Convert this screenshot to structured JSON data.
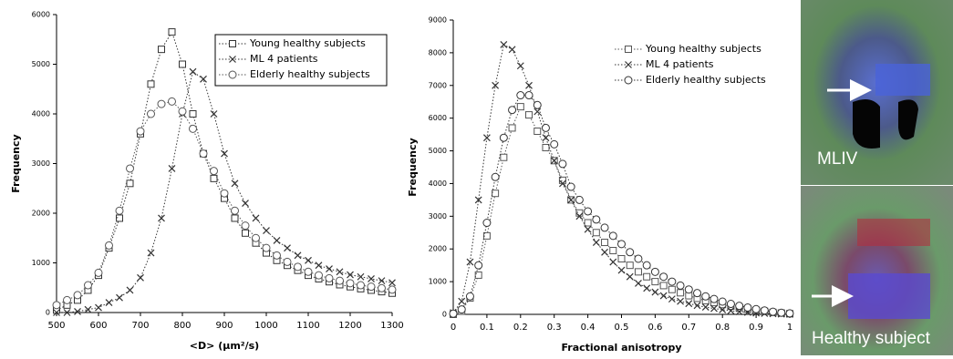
{
  "chart_data": [
    {
      "type": "scatter",
      "x_label": "<D> (μm²/s)",
      "y_label": "Frequency",
      "x": [
        500,
        525,
        550,
        575,
        600,
        625,
        650,
        675,
        700,
        725,
        750,
        775,
        800,
        825,
        850,
        875,
        900,
        925,
        950,
        975,
        1000,
        1025,
        1050,
        1075,
        1100,
        1125,
        1150,
        1175,
        1200,
        1225,
        1250,
        1275,
        1300
      ],
      "series": [
        {
          "name": "Young healthy subjects",
          "color": "#333333",
          "marker": "square",
          "values": [
            50,
            150,
            250,
            450,
            750,
            1300,
            1900,
            2600,
            3600,
            4600,
            5300,
            5650,
            5000,
            4000,
            3200,
            2700,
            2300,
            1900,
            1600,
            1400,
            1200,
            1050,
            950,
            850,
            750,
            680,
            620,
            560,
            520,
            480,
            450,
            420,
            390
          ]
        },
        {
          "name": "ML 4 patients",
          "color": "#333333",
          "marker": "x",
          "values": [
            0,
            0,
            20,
            60,
            100,
            200,
            300,
            450,
            700,
            1200,
            1900,
            2900,
            4000,
            4850,
            4700,
            4000,
            3200,
            2600,
            2200,
            1900,
            1650,
            1450,
            1300,
            1150,
            1050,
            950,
            880,
            820,
            760,
            720,
            680,
            640,
            600
          ]
        },
        {
          "name": "Elderly healthy subjects",
          "color": "#555555",
          "marker": "circle",
          "values": [
            150,
            250,
            350,
            550,
            800,
            1350,
            2050,
            2900,
            3650,
            4000,
            4200,
            4250,
            4050,
            3700,
            3200,
            2850,
            2400,
            2050,
            1750,
            1500,
            1300,
            1150,
            1020,
            920,
            820,
            750,
            690,
            640,
            590,
            550,
            520,
            490,
            460
          ]
        }
      ],
      "line_style": "dotted",
      "xlim": [
        500,
        1300
      ],
      "xticks": [
        500,
        600,
        700,
        800,
        900,
        1000,
        1100,
        1200,
        1300
      ],
      "ylim": [
        0,
        6000
      ],
      "yticks": [
        0,
        1000,
        2000,
        3000,
        4000,
        5000,
        6000
      ],
      "legend": "upper right",
      "legend_frame": true
    },
    {
      "type": "scatter",
      "x_label": "Fractional anisotropy",
      "y_label": "Frequency",
      "x": [
        0,
        0.025,
        0.05,
        0.075,
        0.1,
        0.125,
        0.15,
        0.175,
        0.2,
        0.225,
        0.25,
        0.275,
        0.3,
        0.325,
        0.35,
        0.375,
        0.4,
        0.425,
        0.45,
        0.475,
        0.5,
        0.525,
        0.55,
        0.575,
        0.6,
        0.625,
        0.65,
        0.675,
        0.7,
        0.725,
        0.75,
        0.775,
        0.8,
        0.825,
        0.85,
        0.875,
        0.9,
        0.925,
        0.95,
        0.975,
        1
      ],
      "series": [
        {
          "name": "Young healthy subjects",
          "color": "#555555",
          "marker": "square",
          "values": [
            0,
            100,
            500,
            1200,
            2400,
            3700,
            4800,
            5700,
            6350,
            6100,
            5600,
            5100,
            4700,
            4100,
            3500,
            3100,
            2800,
            2500,
            2200,
            1950,
            1700,
            1500,
            1300,
            1150,
            1000,
            880,
            760,
            660,
            570,
            490,
            420,
            360,
            300,
            250,
            200,
            160,
            120,
            90,
            60,
            40,
            20
          ]
        },
        {
          "name": "ML 4 patients",
          "color": "#333333",
          "marker": "x",
          "values": [
            50,
            400,
            1600,
            3500,
            5400,
            7000,
            8250,
            8100,
            7600,
            7000,
            6200,
            5400,
            4700,
            4000,
            3500,
            3000,
            2600,
            2200,
            1900,
            1600,
            1350,
            1150,
            950,
            800,
            680,
            570,
            470,
            400,
            330,
            270,
            220,
            180,
            140,
            110,
            80,
            60,
            40,
            30,
            20,
            10,
            5
          ]
        },
        {
          "name": "Elderly healthy subjects",
          "color": "#333333",
          "marker": "circle",
          "values": [
            20,
            150,
            550,
            1500,
            2800,
            4200,
            5400,
            6250,
            6700,
            6700,
            6400,
            5700,
            5200,
            4600,
            3900,
            3500,
            3150,
            2900,
            2650,
            2400,
            2150,
            1900,
            1700,
            1500,
            1300,
            1150,
            1000,
            880,
            760,
            650,
            550,
            470,
            390,
            320,
            260,
            210,
            160,
            120,
            80,
            50,
            30
          ]
        }
      ],
      "line_style": "dotted",
      "xlim": [
        0,
        1
      ],
      "xticks": [
        0,
        0.1,
        0.2,
        0.3,
        0.4,
        0.5,
        0.6,
        0.7,
        0.8,
        0.9,
        1
      ],
      "ylim": [
        0,
        9000
      ],
      "yticks": [
        0,
        1000,
        2000,
        3000,
        4000,
        5000,
        6000,
        7000,
        8000,
        9000
      ],
      "legend": "upper right",
      "legend_frame": false
    }
  ],
  "images": [
    {
      "label": "MLIV"
    },
    {
      "label": "Healthy subject"
    }
  ]
}
